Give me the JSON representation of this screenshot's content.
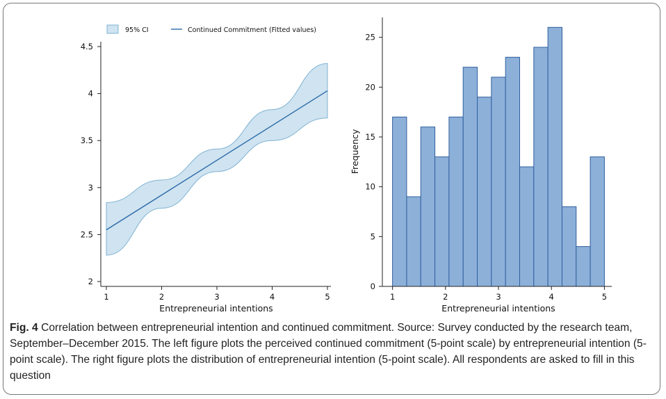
{
  "caption": {
    "label": "Fig. 4",
    "text": "Correlation between entrepreneurial intention and continued commitment. Source: Survey conducted by the research team, September–December 2015. The left figure plots the perceived continued commitment (5-point scale) by entrepreneurial intention (5-point scale). The right figure plots the distribution of entrepreneurial intention (5-point scale). All respondents are asked to fill in this question"
  },
  "colors": {
    "ci_fill": "#cfe3f0",
    "ci_edge": "#7fb3d3",
    "fit_line": "#2a6aa8",
    "bar_fill": "#8db0d9",
    "bar_edge": "#2f5f9e",
    "frame": "#777777"
  },
  "chart_data": [
    {
      "type": "line",
      "legend": {
        "ci_label": "95% CI",
        "line_label": "Continued Commitment (Fitted values)",
        "position": "top"
      },
      "xlabel": "Entrepreneurial intentions",
      "ylabel": "",
      "xlim": [
        1,
        5
      ],
      "ylim": [
        2,
        4.5
      ],
      "x_ticks": [
        "1",
        "2",
        "3",
        "4",
        "5"
      ],
      "y_ticks": [
        "2",
        "2.5",
        "3",
        "3.5",
        "4",
        "4.5"
      ],
      "series": [
        {
          "name": "Continued Commitment (Fitted values)",
          "x": [
            1,
            2,
            3,
            4,
            5
          ],
          "y": [
            2.55,
            2.92,
            3.29,
            3.66,
            4.03
          ],
          "ci_lower": [
            2.28,
            2.78,
            3.17,
            3.5,
            3.74
          ],
          "ci_upper": [
            2.84,
            3.08,
            3.41,
            3.83,
            4.32
          ]
        }
      ]
    },
    {
      "type": "bar",
      "title": "",
      "xlabel": "Entrepreneurial intentions",
      "ylabel": "Frequency",
      "xlim": [
        0.9,
        5.1
      ],
      "ylim": [
        0,
        27
      ],
      "x_ticks": [
        "1",
        "2",
        "3",
        "4",
        "5"
      ],
      "y_ticks": [
        "0",
        "5",
        "10",
        "15",
        "20",
        "25"
      ],
      "bin_start": 1,
      "bin_width": 0.2667,
      "values": [
        17,
        9,
        16,
        13,
        17,
        22,
        19,
        21,
        23,
        12,
        24,
        26,
        8,
        4,
        13
      ]
    }
  ]
}
